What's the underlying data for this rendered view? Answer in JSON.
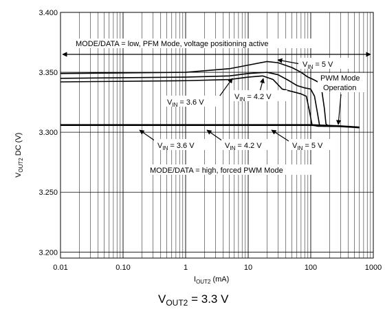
{
  "chart_data": {
    "type": "line",
    "title_main": "V",
    "title_sub": "OUT2",
    "title_rest": " = 3.3 V",
    "xlabel_main": "I",
    "xlabel_sub": "OUT2",
    "xlabel_rest": " (mA)",
    "ylabel_main": "V",
    "ylabel_sub": "OUT2",
    "ylabel_rest": " DC (V)",
    "x_scale": "log",
    "xlim": [
      0.01,
      1000
    ],
    "ylim": [
      3.195,
      3.4
    ],
    "x_ticks": [
      {
        "value": 0.01,
        "label": "0.01"
      },
      {
        "value": 0.1,
        "label": "0.10"
      },
      {
        "value": 1,
        "label": "1"
      },
      {
        "value": 10,
        "label": "10"
      },
      {
        "value": 100,
        "label": "100"
      },
      {
        "value": 1000,
        "label": "1000"
      }
    ],
    "y_ticks": [
      {
        "value": 3.4,
        "label": "3.400"
      },
      {
        "value": 3.35,
        "label": "3.350"
      },
      {
        "value": 3.3,
        "label": "3.300"
      },
      {
        "value": 3.25,
        "label": "3.250"
      },
      {
        "value": 3.2,
        "label": "3.200"
      }
    ],
    "grid": true,
    "series": [
      {
        "values": [
          [
            0.01,
            3.349
          ],
          [
            1,
            3.35
          ],
          [
            5,
            3.353
          ],
          [
            10,
            3.356
          ],
          [
            20,
            3.359
          ],
          [
            30,
            3.358
          ],
          [
            50,
            3.354
          ],
          [
            70,
            3.35
          ],
          [
            90,
            3.346
          ],
          [
            110,
            3.344
          ],
          [
            130,
            3.342
          ],
          [
            150,
            3.335
          ],
          [
            165,
            3.32
          ],
          [
            175,
            3.307
          ],
          [
            190,
            3.305
          ],
          [
            300,
            3.305
          ],
          [
            600,
            3.304
          ]
        ]
      },
      {
        "values": [
          [
            0.01,
            3.345
          ],
          [
            1,
            3.346
          ],
          [
            5,
            3.347
          ],
          [
            10,
            3.349
          ],
          [
            20,
            3.35
          ],
          [
            30,
            3.348
          ],
          [
            45,
            3.343
          ],
          [
            60,
            3.339
          ],
          [
            80,
            3.337
          ],
          [
            100,
            3.336
          ],
          [
            115,
            3.33
          ],
          [
            128,
            3.316
          ],
          [
            138,
            3.306
          ],
          [
            160,
            3.305
          ],
          [
            300,
            3.305
          ],
          [
            600,
            3.304
          ]
        ]
      },
      {
        "values": [
          [
            0.01,
            3.342
          ],
          [
            1,
            3.343
          ],
          [
            5,
            3.344
          ],
          [
            10,
            3.346
          ],
          [
            17,
            3.347
          ],
          [
            25,
            3.344
          ],
          [
            35,
            3.336
          ],
          [
            50,
            3.334
          ],
          [
            70,
            3.332
          ],
          [
            85,
            3.33
          ],
          [
            95,
            3.318
          ],
          [
            105,
            3.306
          ],
          [
            130,
            3.305
          ],
          [
            300,
            3.305
          ],
          [
            600,
            3.304
          ]
        ]
      },
      {
        "values": [
          [
            0.01,
            3.306
          ],
          [
            1,
            3.306
          ],
          [
            10,
            3.306
          ],
          [
            100,
            3.306
          ],
          [
            300,
            3.305
          ],
          [
            600,
            3.304
          ]
        ]
      }
    ],
    "annotations": {
      "pfm_mode": "MODE/DATA = low, PFM Mode, voltage positioning active",
      "pwm_mode": "MODE/DATA = high, forced PWM Mode",
      "pwm_op_line1": "PWM Mode",
      "pwm_op_line2": "Operation",
      "v_prefix": "V",
      "v_sub": "IN",
      "lbl_5v": " = 5 V",
      "lbl_42v": " = 4.2 V",
      "lbl_36v": " = 3.6 V"
    }
  }
}
